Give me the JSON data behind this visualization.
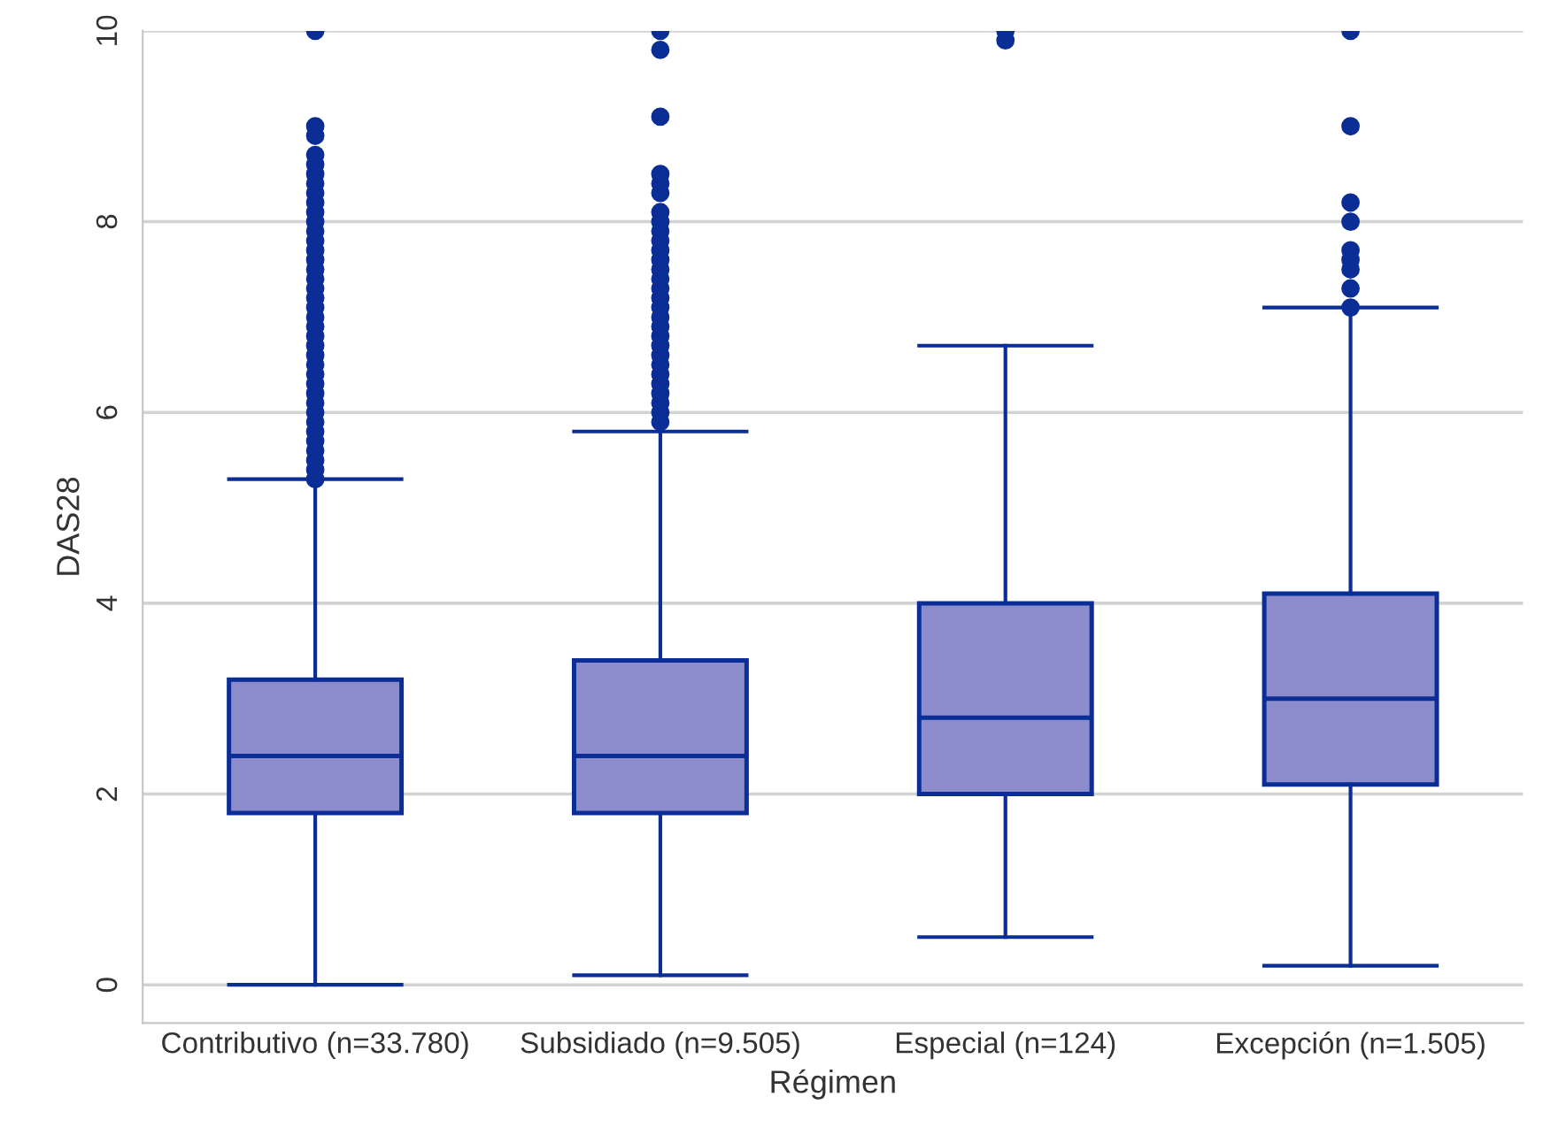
{
  "chart_data": {
    "type": "box",
    "xlabel": "Régimen",
    "ylabel": "DAS28",
    "categories": [
      "Contributivo (n=33.780)",
      "Subsidiado (n=9.505)",
      "Especial (n=124)",
      "Excepción (n=1.505)"
    ],
    "series": [
      {
        "color": "#8c8ccc",
        "boxes": [
          {
            "low": 0,
            "q1": 1.8,
            "median": 2.4,
            "q3": 3.2,
            "high": 5.3,
            "outliers": [
              5.3,
              5.4,
              5.5,
              5.6,
              5.7,
              5.8,
              5.9,
              6.0,
              6.1,
              6.2,
              6.3,
              6.4,
              6.5,
              6.6,
              6.7,
              6.8,
              6.9,
              7.0,
              7.1,
              7.2,
              7.3,
              7.4,
              7.5,
              7.6,
              7.7,
              7.8,
              7.9,
              8.0,
              8.1,
              8.2,
              8.3,
              8.4,
              8.5,
              8.6,
              8.7,
              8.9,
              9.0,
              10.0
            ]
          },
          {
            "low": 0.1,
            "q1": 1.8,
            "median": 2.4,
            "q3": 3.4,
            "high": 5.8,
            "outliers": [
              5.9,
              6.0,
              6.1,
              6.2,
              6.3,
              6.4,
              6.5,
              6.6,
              6.7,
              6.8,
              6.9,
              7.0,
              7.1,
              7.2,
              7.3,
              7.4,
              7.5,
              7.6,
              7.7,
              7.8,
              7.9,
              8.0,
              8.1,
              8.3,
              8.4,
              8.5,
              9.1,
              9.8,
              10.0
            ]
          },
          {
            "low": 0.5,
            "q1": 2.0,
            "median": 2.8,
            "q3": 4.0,
            "high": 6.7,
            "outliers": [
              9.9,
              10.0
            ]
          },
          {
            "low": 0.2,
            "q1": 2.1,
            "median": 3.0,
            "q3": 4.1,
            "high": 7.1,
            "outliers": [
              7.1,
              7.3,
              7.5,
              7.6,
              7.7,
              8.0,
              8.2,
              9.0,
              10.0
            ]
          }
        ]
      }
    ],
    "ylim": [
      -0.4,
      10
    ],
    "yticks": [
      0,
      2,
      4,
      6,
      8,
      10
    ],
    "grid": "y"
  }
}
